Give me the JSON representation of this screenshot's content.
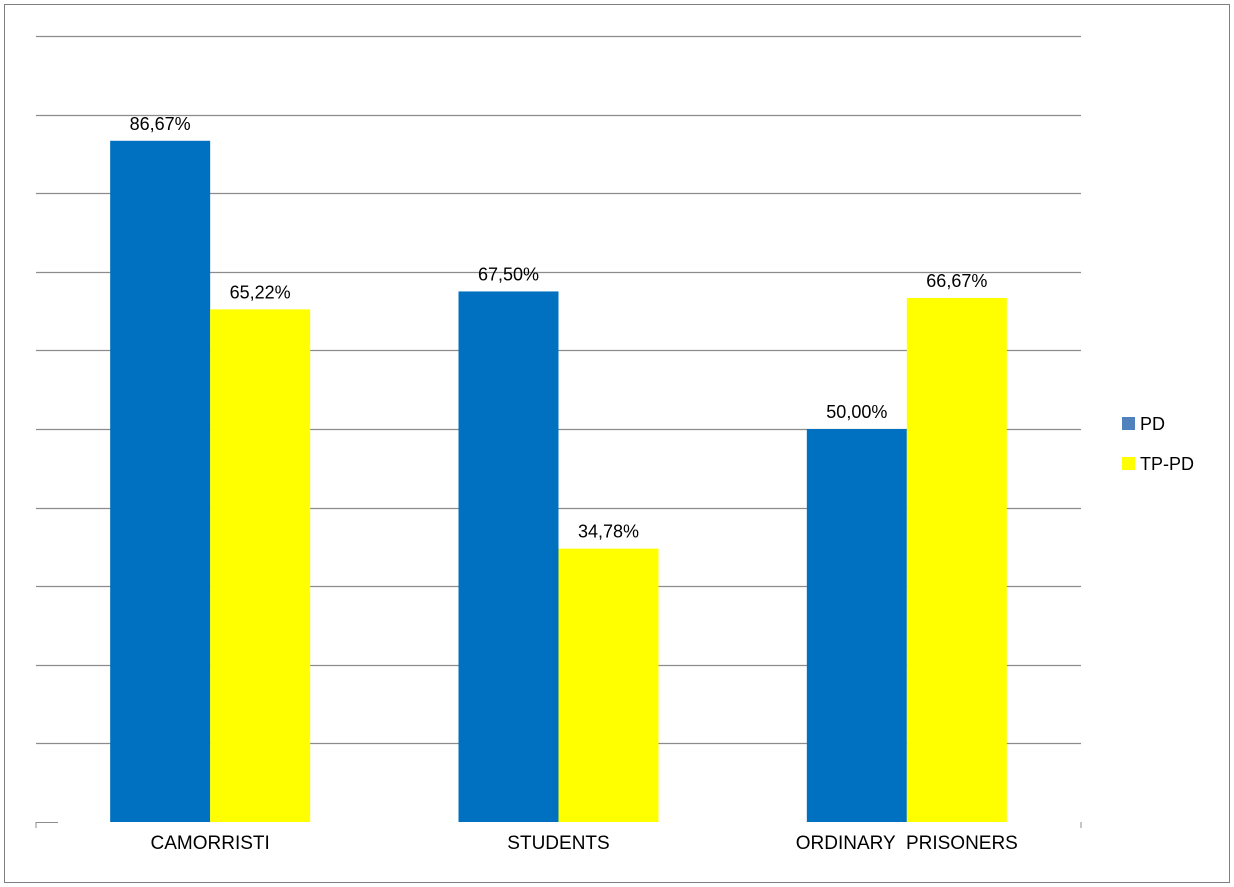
{
  "chart_data": {
    "type": "bar",
    "categories": [
      "CAMORRISTI",
      "STUDENTS",
      "ORDINARY  PRISONERS"
    ],
    "series": [
      {
        "name": "PD",
        "color": "#0070c0",
        "values": [
          86.67,
          67.5,
          50.0
        ],
        "labels": [
          "86,67%",
          "67,50%",
          "50,00%"
        ]
      },
      {
        "name": "TP-PD",
        "color": "#ffff00",
        "values": [
          65.22,
          34.78,
          66.67
        ],
        "labels": [
          "65,22%",
          "34,78%",
          "66,67%"
        ]
      }
    ],
    "legend_marker_colors": [
      "#4f81bd",
      "#ffff00"
    ],
    "ylim": [
      0,
      100
    ],
    "grid": true,
    "legend_position": "right",
    "title": "",
    "xlabel": "",
    "ylabel": ""
  }
}
